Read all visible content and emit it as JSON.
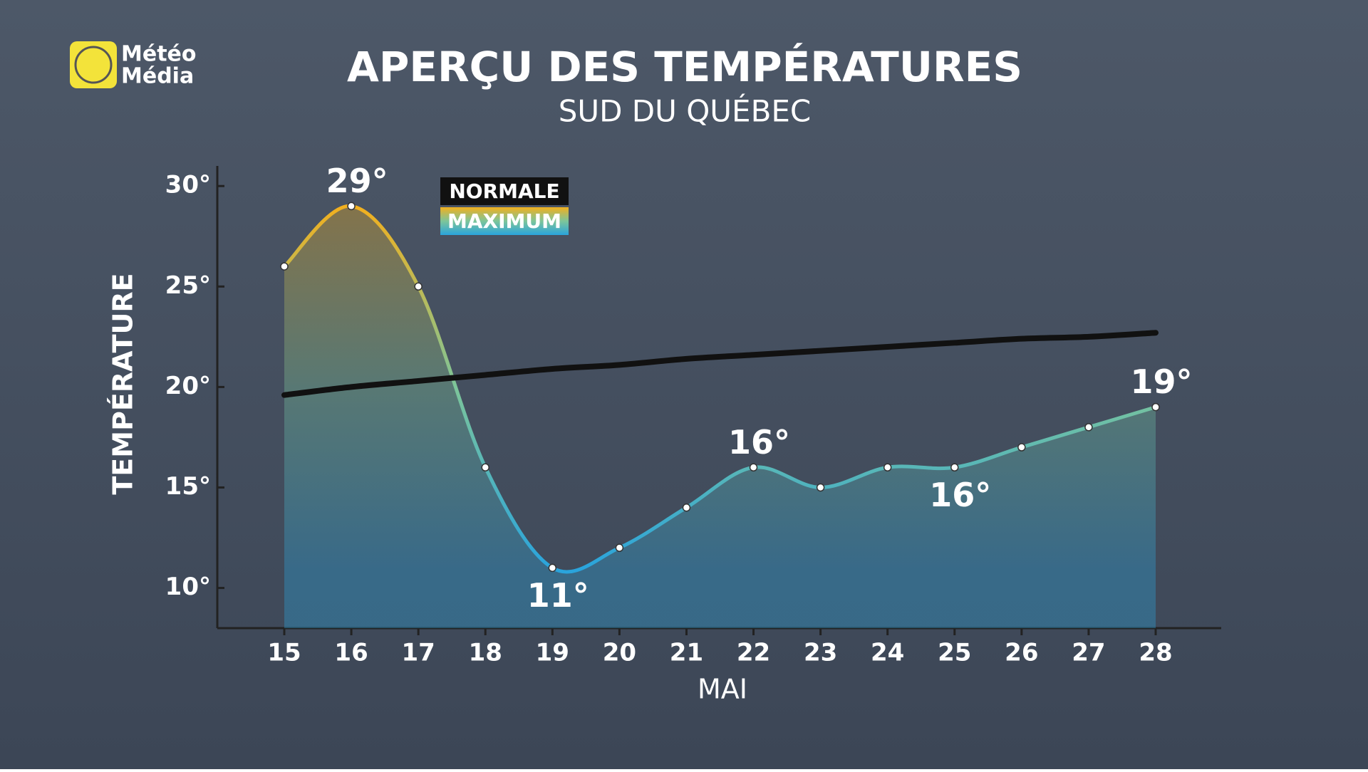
{
  "brand": {
    "line1": "Météo",
    "line2": "Média"
  },
  "chart_data": {
    "type": "line",
    "title": "APERÇU DES TEMPÉRATURES",
    "subtitle": "SUD DU QUÉBEC",
    "x_label": "MAI",
    "y_label": "TEMPÉRATURE",
    "categories": [
      "15",
      "16",
      "17",
      "18",
      "19",
      "20",
      "21",
      "22",
      "23",
      "24",
      "25",
      "26",
      "27",
      "28"
    ],
    "ylim": [
      8,
      31
    ],
    "yticks": [
      {
        "value": 10,
        "label": "10°"
      },
      {
        "value": 15,
        "label": "15°"
      },
      {
        "value": 20,
        "label": "20°"
      },
      {
        "value": 25,
        "label": "25°"
      },
      {
        "value": 30,
        "label": "30°"
      }
    ],
    "grid": false,
    "legend": "top-left",
    "series": [
      {
        "name": "NORMALE",
        "color": "#111111",
        "values": [
          19.6,
          20.0,
          20.3,
          20.6,
          20.9,
          21.1,
          21.4,
          21.6,
          21.8,
          22.0,
          22.2,
          22.4,
          22.5,
          22.7
        ]
      },
      {
        "name": "MAXIMUM",
        "color": "#2aa4dc",
        "gradient": [
          "#f2b01e",
          "#7dc59a",
          "#2aa4dc"
        ],
        "area": true,
        "values": [
          26,
          29,
          25,
          16,
          11,
          12,
          14,
          16,
          15,
          16,
          16,
          17,
          18,
          19
        ],
        "value_labels": [
          null,
          "29°",
          null,
          null,
          "11°",
          null,
          null,
          "16°",
          null,
          null,
          "16°",
          null,
          null,
          "19°"
        ]
      }
    ]
  }
}
